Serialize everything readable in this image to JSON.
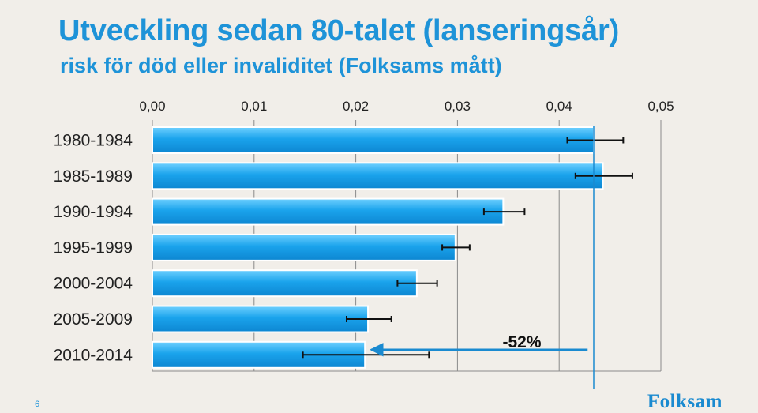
{
  "header": {
    "title": "Utveckling sedan 80-talet (lanseringsår)",
    "subtitle": "risk för död eller invaliditet (Folksams mått)"
  },
  "footer": {
    "slide_number": "6",
    "logo_text": "Folksam"
  },
  "colors": {
    "title": "#1e93d8",
    "bar": "#1aa3ec",
    "reference_line": "#1a8ad0",
    "gridline": "#8a8a8a"
  },
  "chart_data": {
    "type": "bar",
    "orientation": "horizontal",
    "categories": [
      "1980-1984",
      "1985-1989",
      "1990-1994",
      "1995-1999",
      "2000-2004",
      "2005-2009",
      "2010-2014"
    ],
    "values": [
      0.0434,
      0.0443,
      0.0345,
      0.0298,
      0.026,
      0.0212,
      0.0209
    ],
    "error_low": [
      0.0408,
      0.0416,
      0.0326,
      0.0285,
      0.0241,
      0.0191,
      0.0148
    ],
    "error_high": [
      0.0463,
      0.0472,
      0.0366,
      0.0312,
      0.028,
      0.0235,
      0.0272
    ],
    "xaxis": {
      "position": "top",
      "range": [
        0,
        0.05
      ],
      "ticks": [
        0,
        0.01,
        0.02,
        0.03,
        0.04,
        0.05
      ],
      "tick_labels": [
        "0,00",
        "0,01",
        "0,02",
        "0,03",
        "0,04",
        "0,05"
      ]
    },
    "grid": true,
    "reference_line": {
      "value": 0.0434
    },
    "annotation": {
      "text": "-52%",
      "arrow_from": 0.0428,
      "arrow_to": 0.0215
    }
  }
}
